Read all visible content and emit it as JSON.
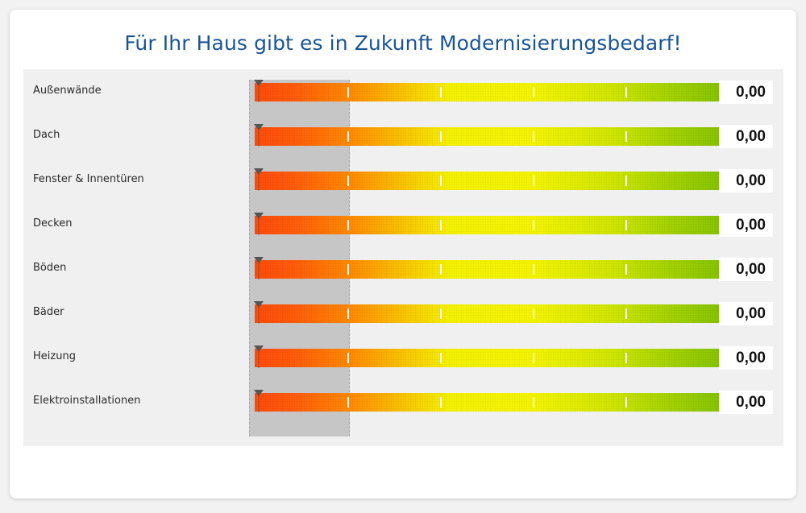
{
  "title": "Für Ihr Haus gibt es in Zukunft Modernisierungsbedarf!",
  "colors": {
    "title": "#1a5496",
    "scale_start": "#ff4b0a",
    "scale_mid": "#f5f200",
    "scale_end": "#86c400",
    "shaded_zone": "#c6c6c6"
  },
  "marker_icon": "triangle-down-icon",
  "rows": [
    {
      "label": "Außenwände",
      "value": "0,00",
      "level": 0
    },
    {
      "label": "Dach",
      "value": "0,00",
      "level": 0
    },
    {
      "label": "Fenster & Innentüren",
      "value": "0,00",
      "level": 0
    },
    {
      "label": "Decken",
      "value": "0,00",
      "level": 0
    },
    {
      "label": "Böden",
      "value": "0,00",
      "level": 0
    },
    {
      "label": "Bäder",
      "value": "0,00",
      "level": 0
    },
    {
      "label": "Heizung",
      "value": "0,00",
      "level": 0
    },
    {
      "label": "Elektroinstallationen",
      "value": "0,00",
      "level": 0
    }
  ]
}
